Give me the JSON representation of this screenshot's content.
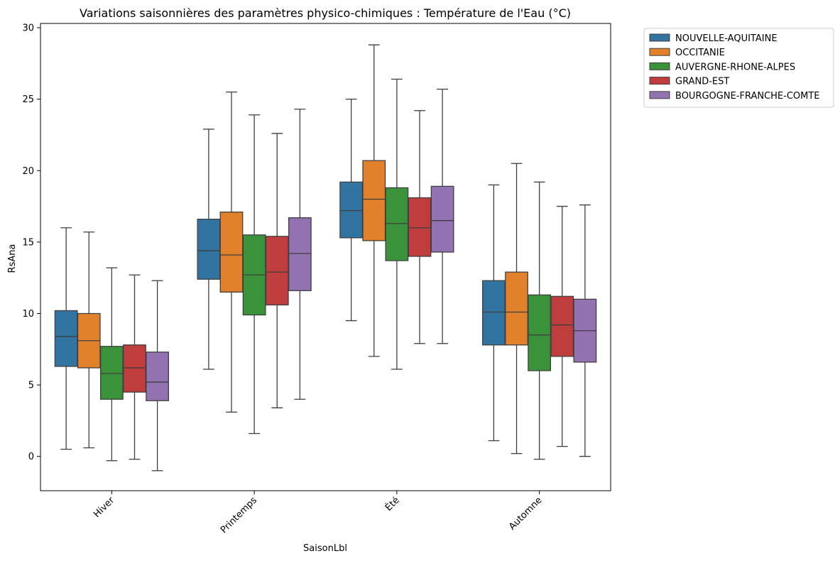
{
  "chart_data": {
    "type": "boxplot",
    "title": "Variations saisonnières des paramètres physico-chimiques : Température de l'Eau (°C)",
    "xlabel": "SaisonLbl",
    "ylabel": "RsAna",
    "ylim": [
      -2.4,
      30.3
    ],
    "yticks": [
      0,
      5,
      10,
      15,
      20,
      25,
      30
    ],
    "grid": false,
    "legend_position": "outside-top-right",
    "categories": [
      "Hiver",
      "Printemps",
      "Été",
      "Automne"
    ],
    "series": [
      {
        "name": "NOUVELLE-AQUITAINE",
        "color": "#3274a1",
        "boxes": [
          {
            "min": 0.5,
            "q1": 6.3,
            "median": 8.4,
            "q3": 10.2,
            "max": 16.0
          },
          {
            "min": 6.1,
            "q1": 12.4,
            "median": 14.4,
            "q3": 16.6,
            "max": 22.9
          },
          {
            "min": 9.5,
            "q1": 15.3,
            "median": 17.2,
            "q3": 19.2,
            "max": 25.0
          },
          {
            "min": 1.1,
            "q1": 7.8,
            "median": 10.1,
            "q3": 12.3,
            "max": 19.0
          }
        ]
      },
      {
        "name": "OCCITANIE",
        "color": "#e1812c",
        "boxes": [
          {
            "min": 0.6,
            "q1": 6.2,
            "median": 8.1,
            "q3": 10.0,
            "max": 15.7
          },
          {
            "min": 3.1,
            "q1": 11.5,
            "median": 14.1,
            "q3": 17.1,
            "max": 25.5
          },
          {
            "min": 7.0,
            "q1": 15.1,
            "median": 18.0,
            "q3": 20.7,
            "max": 28.8
          },
          {
            "min": 0.2,
            "q1": 7.8,
            "median": 10.1,
            "q3": 12.9,
            "max": 20.5
          }
        ]
      },
      {
        "name": "AUVERGNE-RHONE-ALPES",
        "color": "#3a923a",
        "boxes": [
          {
            "min": -0.3,
            "q1": 4.0,
            "median": 5.8,
            "q3": 7.7,
            "max": 13.2
          },
          {
            "min": 1.6,
            "q1": 9.9,
            "median": 12.7,
            "q3": 15.5,
            "max": 23.9
          },
          {
            "min": 6.1,
            "q1": 13.7,
            "median": 16.3,
            "q3": 18.8,
            "max": 26.4
          },
          {
            "min": -0.2,
            "q1": 6.0,
            "median": 8.5,
            "q3": 11.3,
            "max": 19.2
          }
        ]
      },
      {
        "name": "GRAND-EST",
        "color": "#c03d3e",
        "boxes": [
          {
            "min": -0.2,
            "q1": 4.5,
            "median": 6.2,
            "q3": 7.8,
            "max": 12.7
          },
          {
            "min": 3.4,
            "q1": 10.6,
            "median": 12.9,
            "q3": 15.4,
            "max": 22.6
          },
          {
            "min": 7.9,
            "q1": 14.0,
            "median": 16.0,
            "q3": 18.1,
            "max": 24.2
          },
          {
            "min": 0.7,
            "q1": 7.0,
            "median": 9.2,
            "q3": 11.2,
            "max": 17.5
          }
        ]
      },
      {
        "name": "BOURGOGNE-FRANCHE-COMTE",
        "color": "#9372b2",
        "boxes": [
          {
            "min": -1.0,
            "q1": 3.9,
            "median": 5.2,
            "q3": 7.3,
            "max": 12.3
          },
          {
            "min": 4.0,
            "q1": 11.6,
            "median": 14.2,
            "q3": 16.7,
            "max": 24.3
          },
          {
            "min": 7.9,
            "q1": 14.3,
            "median": 16.5,
            "q3": 18.9,
            "max": 25.7
          },
          {
            "min": 0.0,
            "q1": 6.6,
            "median": 8.8,
            "q3": 11.0,
            "max": 17.6
          }
        ]
      }
    ]
  }
}
